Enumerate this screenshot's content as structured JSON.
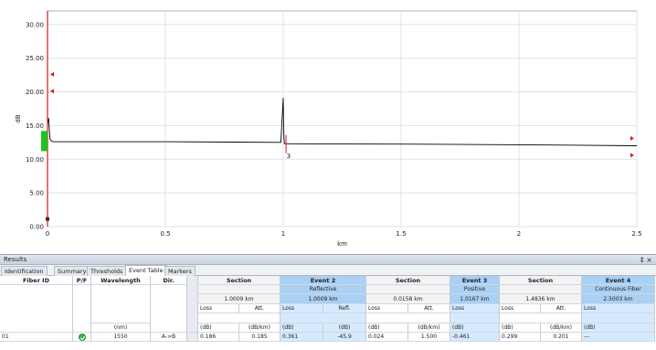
{
  "chart_data": {
    "type": "line",
    "xlabel": "km",
    "ylabel": "dB",
    "xlim": [
      0,
      2.5
    ],
    "ylim": [
      0,
      32
    ],
    "x_ticks": [
      "0",
      "0.5",
      "1",
      "1.5",
      "2",
      "2.5"
    ],
    "y_ticks": [
      "0.00",
      "5.00",
      "10.00",
      "15.00",
      "20.00",
      "25.00",
      "30.00"
    ],
    "x_tick_values": [
      0,
      0.5,
      1,
      1.5,
      2,
      2.5
    ],
    "y_tick_values": [
      0,
      5,
      10,
      15,
      20,
      25,
      30
    ],
    "grid": true,
    "series": [
      {
        "x": [
          0,
          0.005,
          0.01,
          0.02,
          0.5,
          0.99,
          1.0,
          1.001,
          1.003,
          1.005,
          1.01,
          1.5,
          2.0,
          2.5
        ],
        "y": [
          15.2,
          16.1,
          13.0,
          12.6,
          12.6,
          12.5,
          19.1,
          16.0,
          13.2,
          12.3,
          12.3,
          12.25,
          12.15,
          12.0
        ]
      }
    ],
    "annotations": [
      {
        "text": "3",
        "x": 1.01,
        "y": 10.2
      }
    ],
    "colors": {
      "trace": "#000000",
      "cursor": "#e0161b",
      "grid": "#d8e4f0",
      "marker": "#1ec31e"
    }
  },
  "results": {
    "title": "Results",
    "controls": "‡ ×",
    "tabs": [
      "Identification",
      "Summary",
      "Thresholds",
      "Event Table",
      "Markers"
    ],
    "active_tab": "Event Table",
    "columns": {
      "fiber_id": "Fiber ID",
      "pf": "P/F",
      "wavelength": "Wavelength",
      "wavelength_unit": "(nm)",
      "dir": "Dir."
    },
    "groups": [
      {
        "title": "Section",
        "sub": "",
        "distance": "1.0009 km",
        "col1": "Loss",
        "col2": "Att.",
        "unit1": "(dB)",
        "unit2": "(dB/km)",
        "style": "gray"
      },
      {
        "title": "Event 2",
        "sub": "Reflective",
        "distance": "1.0009 km",
        "col1": "Loss",
        "col2": "Refl.",
        "unit1": "(dB)",
        "unit2": "(dB)",
        "style": "blue"
      },
      {
        "title": "Section",
        "sub": "",
        "distance": "0.0158 km",
        "col1": "Loss",
        "col2": "Att.",
        "unit1": "(dB)",
        "unit2": "(dB/km)",
        "style": "gray"
      },
      {
        "title": "Event 3",
        "sub": "Positive",
        "distance": "1.0167 km",
        "col1": "Loss",
        "col2": "",
        "unit1": "(dB)",
        "unit2": "",
        "style": "blue"
      },
      {
        "title": "Section",
        "sub": "",
        "distance": "1.4836 km",
        "col1": "Loss",
        "col2": "Att.",
        "unit1": "(dB)",
        "unit2": "(dB/km)",
        "style": "gray"
      },
      {
        "title": "Event 4",
        "sub": "Continuous Fiber",
        "distance": "2.5003 km",
        "col1": "Loss",
        "col2": "",
        "unit1": "(dB)",
        "unit2": "",
        "style": "blue"
      }
    ],
    "row": {
      "fiber_id": "01",
      "pf_icon": "pass-check-icon",
      "wavelength": "1550",
      "dir": "A->B",
      "values": [
        "0.186",
        "0.185",
        "0.361",
        "-45.9",
        "0.024",
        "1.500",
        "-0.461",
        "",
        "0.299",
        "0.201",
        "---",
        ""
      ]
    }
  }
}
